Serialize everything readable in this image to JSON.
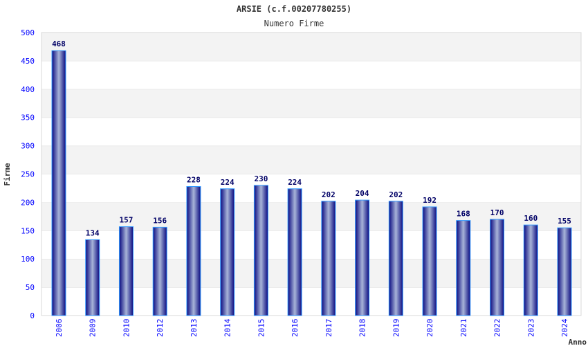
{
  "chart_data": {
    "type": "bar",
    "title": "ARSIE (c.f.00207780255)",
    "subtitle": "Numero Firme",
    "xlabel": "Anno",
    "ylabel": "Firme",
    "ylim": [
      0,
      500
    ],
    "yticks": [
      0,
      50,
      100,
      150,
      200,
      250,
      300,
      350,
      400,
      450,
      500
    ],
    "grid": true,
    "categories": [
      "2006",
      "2009",
      "2010",
      "2012",
      "2013",
      "2014",
      "2015",
      "2016",
      "2017",
      "2018",
      "2019",
      "2020",
      "2021",
      "2022",
      "2023",
      "2024"
    ],
    "values": [
      468,
      134,
      157,
      156,
      228,
      224,
      230,
      224,
      202,
      204,
      202,
      192,
      168,
      170,
      160,
      155
    ],
    "colors": {
      "bar_dark": "#0a0a80",
      "bar_light": "#a8b4d8",
      "bar_edge": "#3399ff",
      "label": "#000066",
      "tick": "#0000ff",
      "band": "#f3f3f3"
    }
  }
}
